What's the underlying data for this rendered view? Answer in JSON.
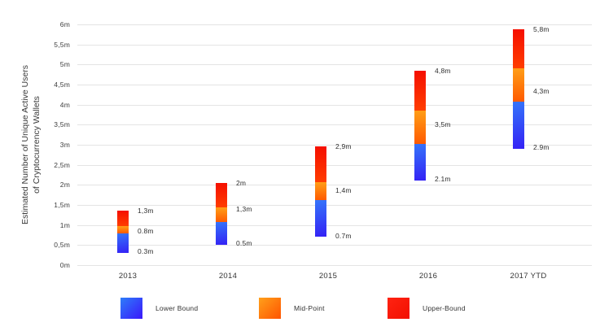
{
  "chart_data": {
    "type": "bar",
    "subtype": "floating-stacked-range-columns",
    "title": "",
    "ylabel_line1": "Estimated Number of Unique Active Users",
    "ylabel_line2": "of Cryptocurrency Wallets",
    "xlabel": "",
    "ylim": [
      0,
      6
    ],
    "grid": true,
    "legend_position": "bottom",
    "y_ticks": [
      {
        "value": 6,
        "label": "6m"
      },
      {
        "value": 5.5,
        "label": "5,5m"
      },
      {
        "value": 5,
        "label": "5m"
      },
      {
        "value": 4.5,
        "label": "4,5m"
      },
      {
        "value": 4,
        "label": "4m"
      },
      {
        "value": 3.5,
        "label": "3,5m"
      },
      {
        "value": 3,
        "label": "3m"
      },
      {
        "value": 2.5,
        "label": "2,5m"
      },
      {
        "value": 2,
        "label": "2m"
      },
      {
        "value": 1.5,
        "label": "1,5m"
      },
      {
        "value": 1,
        "label": "1m"
      },
      {
        "value": 0.5,
        "label": "0,5m"
      },
      {
        "value": 0,
        "label": "0m"
      }
    ],
    "categories": [
      "2013",
      "2014",
      "2015",
      "2016",
      "2017 YTD"
    ],
    "series_legend": [
      {
        "name": "Lower Bound",
        "key": "lower_bound",
        "gradient": [
          "#2E7EF9",
          "#3A16FB"
        ]
      },
      {
        "name": "Mid-Point",
        "key": "mid_point",
        "gradient": [
          "#FFA01B",
          "#FF5400"
        ]
      },
      {
        "name": "Upper-Bound",
        "key": "upper_bound",
        "gradient": [
          "#FF2312",
          "#F21000"
        ]
      }
    ],
    "bars": [
      {
        "category": "2013",
        "lower": 0.3,
        "mid": 0.8,
        "upper": 1.3,
        "labels": {
          "upper": "1,3m",
          "mid": "0.8m",
          "lower": "0.3m"
        },
        "segments": {
          "lower_bound": [
            0.3,
            0.8
          ],
          "mid_point": [
            0.8,
            0.97
          ],
          "upper_bound": [
            0.97,
            1.35
          ]
        },
        "label_anchors": {
          "upper": 1.35,
          "mid": 0.85,
          "lower": 0.34
        }
      },
      {
        "category": "2014",
        "lower": 0.5,
        "mid": 1.3,
        "upper": 2.0,
        "labels": {
          "upper": "2m",
          "mid": "1,3m",
          "lower": "0.5m"
        },
        "segments": {
          "lower_bound": [
            0.5,
            1.08
          ],
          "mid_point": [
            1.08,
            1.43
          ],
          "upper_bound": [
            1.43,
            2.04
          ]
        },
        "label_anchors": {
          "upper": 2.04,
          "mid": 1.4,
          "lower": 0.55
        }
      },
      {
        "category": "2015",
        "lower": 0.7,
        "mid": 1.4,
        "upper": 2.9,
        "labels": {
          "upper": "2,9m",
          "mid": "1,4m",
          "lower": "0.7m"
        },
        "segments": {
          "lower_bound": [
            0.7,
            1.62
          ],
          "mid_point": [
            1.62,
            2.07
          ],
          "upper_bound": [
            2.07,
            2.95
          ]
        },
        "label_anchors": {
          "upper": 2.95,
          "mid": 1.87,
          "lower": 0.73
        }
      },
      {
        "category": "2016",
        "lower": 2.1,
        "mid": 3.5,
        "upper": 4.8,
        "labels": {
          "upper": "4,8m",
          "mid": "3,5m",
          "lower": "2.1m"
        },
        "segments": {
          "lower_bound": [
            2.1,
            3.03
          ],
          "mid_point": [
            3.03,
            3.85
          ],
          "upper_bound": [
            3.85,
            4.84
          ]
        },
        "label_anchors": {
          "upper": 4.84,
          "mid": 3.5,
          "lower": 2.14
        }
      },
      {
        "category": "2017 YTD",
        "lower": 2.9,
        "mid": 4.3,
        "upper": 5.8,
        "labels": {
          "upper": "5,8m",
          "mid": "4,3m",
          "lower": "2.9m"
        },
        "segments": {
          "lower_bound": [
            2.9,
            4.07
          ],
          "mid_point": [
            4.07,
            4.91
          ],
          "upper_bound": [
            4.91,
            5.87
          ]
        },
        "label_anchors": {
          "upper": 5.87,
          "mid": 4.33,
          "lower": 2.93
        }
      }
    ]
  }
}
